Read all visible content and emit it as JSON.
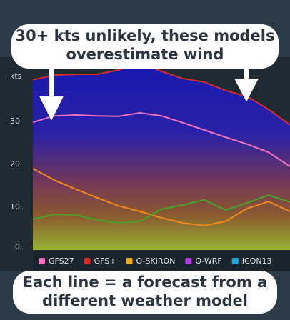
{
  "chart_data": {
    "type": "line",
    "y_label": "kts",
    "ylim": [
      0,
      45
    ],
    "yticks": [
      0,
      10,
      20,
      30
    ],
    "categories": [
      null,
      null,
      null,
      null,
      null,
      null,
      null,
      null,
      null,
      null,
      null,
      null,
      null
    ],
    "series": [
      {
        "name": "GFS+",
        "color": "#d32f2f",
        "values": [
          39.7,
          40.8,
          41,
          41,
          42,
          43.7,
          41.7,
          40,
          39.2,
          37.2,
          35.8,
          32.8,
          29.2
        ]
      },
      {
        "name": "GFS27",
        "color": "#ee73bf",
        "values": [
          29.8,
          31.3,
          31.5,
          31.3,
          31.2,
          32,
          31.3,
          29.7,
          28,
          26.3,
          24.7,
          22.8,
          19.5
        ]
      },
      {
        "name": "O-SKIRON",
        "color": "#f08a1c",
        "values": [
          19,
          16.3,
          14.2,
          12.2,
          10.3,
          9,
          7.5,
          6.3,
          5.7,
          6.7,
          9.7,
          11.3,
          9
        ]
      },
      {
        "color": "#4aa02a",
        "values": [
          7.2,
          8.3,
          8.2,
          7,
          6.3,
          6.7,
          9.5,
          10.5,
          11.7,
          9.3,
          11,
          12.8,
          11.2
        ]
      }
    ],
    "legend": [
      {
        "name": "GFS27",
        "color": "#ee73bf"
      },
      {
        "name": "GFS+",
        "color": "#d32f2f"
      },
      {
        "name": "O-SKIRON",
        "color": "#f0a81c"
      },
      {
        "name": "O-WRF",
        "color": "#b040e0"
      },
      {
        "name": "ICON13",
        "color": "#20a8d8"
      }
    ],
    "annotations": [
      "30+ kts unlikely, these models",
      "overestimate wind",
      "Each line = a forecast from a",
      "different weather model"
    ]
  }
}
